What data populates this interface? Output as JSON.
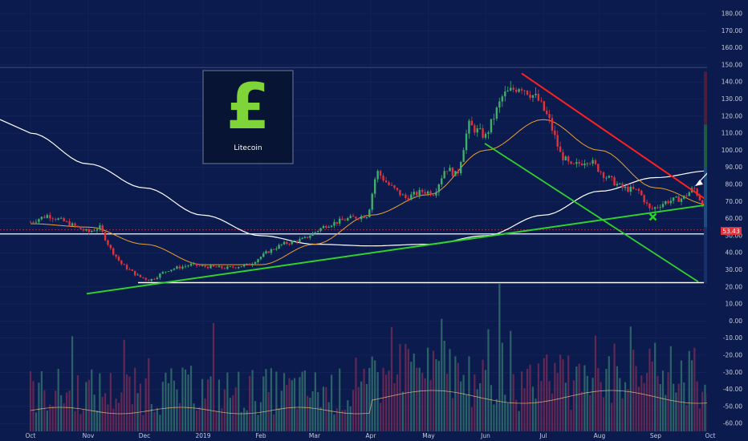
{
  "logo": {
    "symbol": "£",
    "name": "Litecoin"
  },
  "price_axis": {
    "ticks": [
      "180.00",
      "170.00",
      "160.00",
      "150.00",
      "140.00",
      "130.00",
      "120.00",
      "110.00",
      "100.00",
      "90.00",
      "80.00",
      "70.00",
      "60.00",
      "50.00",
      "40.00",
      "30.00",
      "20.00",
      "10.00",
      "0.00",
      "-10.00",
      "-20.00",
      "-30.00",
      "-40.00",
      "-50.00",
      "-60.00"
    ],
    "last_price": "53.43"
  },
  "time_axis": {
    "labels": [
      "Oct",
      "Nov",
      "Dec",
      "2019",
      "Feb",
      "Mar",
      "Apr",
      "May",
      "Jun",
      "Jul",
      "Aug",
      "Sep",
      "Oct"
    ]
  },
  "colors": {
    "background": "#0c1b4d",
    "up_candle": "#3fae6a",
    "down_candle": "#e0323c",
    "support_line": "#2fd12f",
    "resistance_line": "#ff2020",
    "ma_short": "#f0a030",
    "ma_long": "#ffffff",
    "horizontal_level": "#ffffff",
    "logo_green": "#7fd43a"
  },
  "chart_data": {
    "type": "candlestick",
    "title": "",
    "xlabel": "",
    "ylabel": "",
    "ylim": [
      -60,
      185
    ],
    "x": [
      "Oct 2018",
      "Nov 2018",
      "Dec 2018",
      "Jan 2019",
      "Feb 2019",
      "Mar 2019",
      "Apr 2019",
      "May 2019",
      "Jun 2019",
      "Jul 2019",
      "Aug 2019",
      "Sep 2019",
      "Oct 2019"
    ],
    "close_approx": [
      57,
      50,
      25,
      32,
      34,
      56,
      88,
      75,
      136,
      95,
      76,
      70,
      53.43
    ],
    "ma_short_approx": [
      57,
      55,
      45,
      33,
      33,
      45,
      62,
      74,
      100,
      118,
      100,
      78,
      68
    ],
    "ma_long_approx": [
      110,
      92,
      78,
      62,
      50,
      45,
      44,
      45,
      50,
      62,
      76,
      84,
      88
    ],
    "horizontal_levels": [
      51,
      22.5,
      148.5
    ],
    "trendlines": [
      {
        "name": "support",
        "from": [
          "Nov 2018",
          16
        ],
        "to": [
          "Oct 2019",
          68
        ]
      },
      {
        "name": "resistance",
        "from": [
          "Jun 2019",
          145
        ],
        "to": [
          "Oct 2019",
          71
        ]
      },
      {
        "name": "channel",
        "from": [
          "Jun 2019",
          104
        ],
        "to": [
          "Oct 2019",
          23
        ]
      }
    ],
    "marker": {
      "type": "cross",
      "at": [
        "Sep 2019",
        61
      ]
    }
  }
}
